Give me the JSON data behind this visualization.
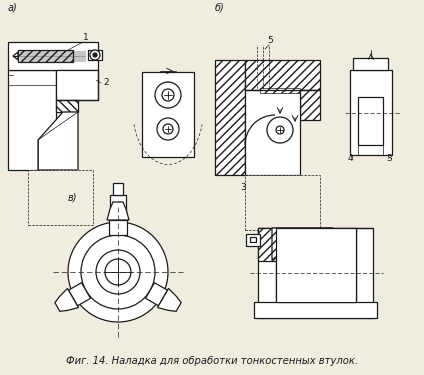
{
  "caption": "Фиг. 14. Наладка для обработки тонкостенных втулок.",
  "bg_color": "#f0ece0",
  "line_color": "#1a1a1a",
  "label_a": "а)",
  "label_b": "б)",
  "label_v": "в)",
  "fig_width": 4.24,
  "fig_height": 3.75,
  "dpi": 100
}
